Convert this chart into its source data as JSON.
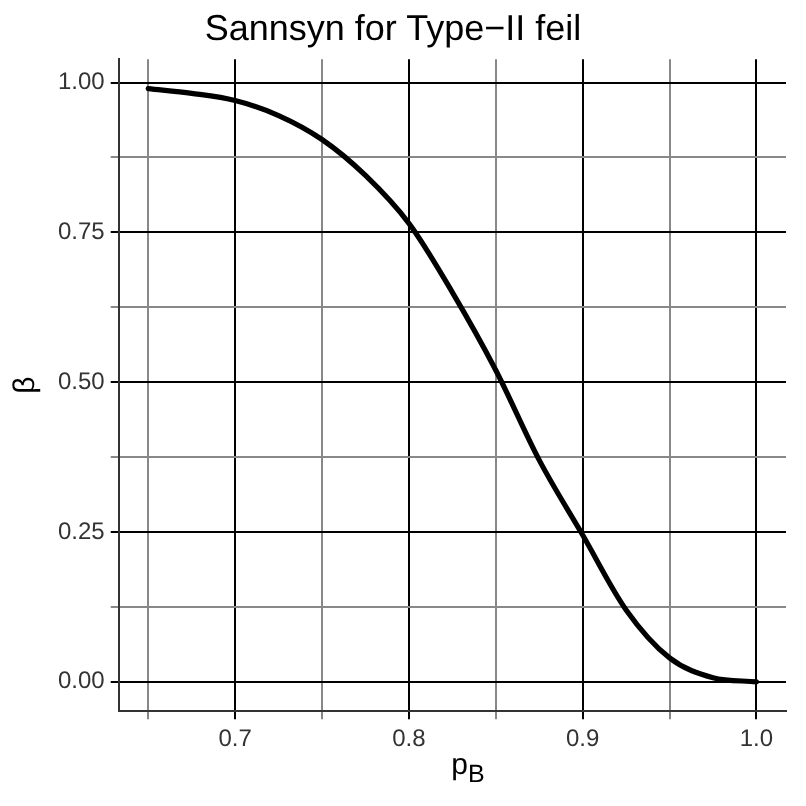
{
  "chart_data": {
    "type": "line",
    "title": "Sannsyn for Type−II feil",
    "xlabel": "p$_{B}$",
    "ylabel": "β",
    "x": [
      0.65,
      0.675,
      0.7,
      0.725,
      0.75,
      0.775,
      0.8,
      0.825,
      0.85,
      0.875,
      0.9,
      0.925,
      0.95,
      0.975,
      1.0
    ],
    "series": [
      {
        "color": "#000000",
        "values": [
          0.99,
          0.982,
          0.97,
          0.945,
          0.905,
          0.845,
          0.765,
          0.65,
          0.52,
          0.37,
          0.245,
          0.12,
          0.04,
          0.007,
          0.0
        ]
      }
    ],
    "xlim": [
      0.633,
      1.017
    ],
    "ylim": [
      -0.049,
      1.039
    ],
    "xticks": [
      {
        "value": 0.65,
        "label": null
      },
      0.7,
      {
        "value": 0.75,
        "label": null
      },
      0.8,
      {
        "value": 0.85,
        "label": null
      },
      0.9,
      {
        "value": 0.95,
        "label": null
      },
      {
        "value": 1.0,
        "label": "1.0"
      }
    ],
    "yticks": [
      {
        "value": 0,
        "label": "0.00"
      },
      {
        "value": 0.125,
        "label": null
      },
      {
        "value": 0.25,
        "label": "0.25"
      },
      {
        "value": 0.375,
        "label": null
      },
      {
        "value": 0.5,
        "label": "0.50"
      },
      {
        "value": 0.625,
        "label": null
      },
      {
        "value": 0.75,
        "label": "0.75"
      },
      {
        "value": 0.875,
        "label": null
      },
      {
        "value": 1.0,
        "label": "1.00"
      }
    ],
    "grid": true,
    "marker": "none",
    "line_style": "solid"
  }
}
